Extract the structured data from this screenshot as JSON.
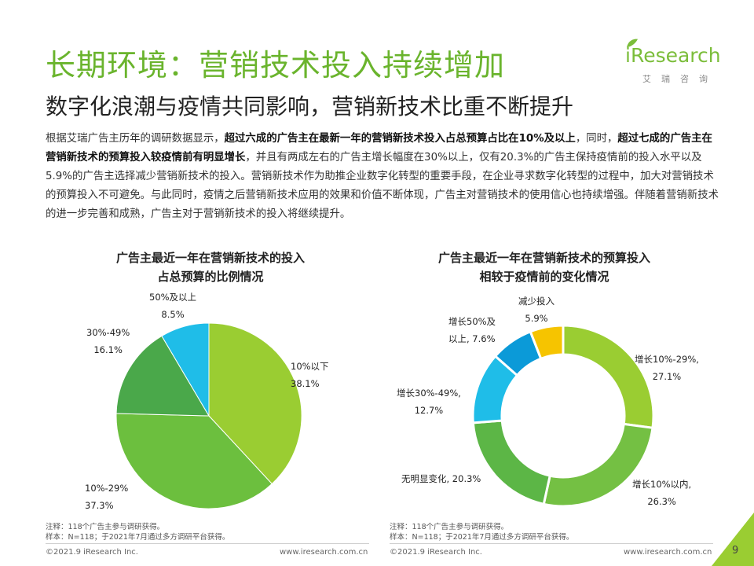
{
  "header": {
    "title": "长期环境：营销技术投入持续增加",
    "subtitle": "数字化浪潮与疫情共同影响，营销新技术比重不断提升"
  },
  "logo": {
    "word": "Research",
    "prefix": "i",
    "sub": "艾瑞咨询"
  },
  "body": {
    "p1": "根据艾瑞广告主历年的调研数据显示，",
    "b1": "超过六成的广告主在最新一年的营销新技术投入占总预算占比在10%及以上",
    "p2": "，同时，",
    "b2": "超过七成的广告主在营销新技术的预算投入较疫情前有明显增长",
    "p3": "，并且有两成左右的广告主增长幅度在30%以上，仅有20.3%的广告主保持疫情前的投入水平以及5.9%的广告主选择减少营销新技术的投入。营销新技术作为助推企业数字化转型的重要手段，在企业寻求数字化转型的过程中，加大对营销技术的预算投入不可避免。与此同时，疫情之后营销新技术应用的效果和价值不断体现，广告主对营销技术的使用信心也持续增强。伴随着营销新技术的进一步完善和成熟，广告主对于营销新技术的投入将继续提升。"
  },
  "chart_data": [
    {
      "type": "pie",
      "title": "广告主最近一年在营销新技术的投入\n占总预算的比例情况",
      "title_line1": "广告主最近一年在营销新技术的投入",
      "title_line2": "占总预算的比例情况",
      "categories": [
        "10%以下",
        "10%-29%",
        "30%-49%",
        "50%及以上"
      ],
      "values": [
        38.1,
        37.3,
        16.1,
        8.5
      ],
      "value_labels": [
        "38.1%",
        "37.3%",
        "16.1%",
        "8.5%"
      ],
      "colors": [
        "#9acd32",
        "#6cbf3e",
        "#4aa84a",
        "#1fbde8"
      ],
      "note1": "注释：118个广告主参与调研获得。",
      "note2": "样本：N=118；于2021年7月通过多方调研平台获得。"
    },
    {
      "type": "donut",
      "title_line1": "广告主最近一年在营销新技术的预算投入",
      "title_line2": "相较于疫情前的变化情况",
      "categories": [
        "增长10%-29%",
        "增长10%以内",
        "无明显变化",
        "增长30%-49%",
        "增长50%及以上",
        "减少投入"
      ],
      "values": [
        27.1,
        26.3,
        20.3,
        12.7,
        7.6,
        5.9
      ],
      "labels": {
        "a1": "增长10%-29%,",
        "a2": "27.1%",
        "b1": "增长10%以内,",
        "b2": "26.3%",
        "c1": "无明显变化, 20.3%",
        "d1": "增长30%-49%,",
        "d2": "12.7%",
        "e1": "增长50%及",
        "e2": "以上, 7.6%",
        "f1": "减少投入",
        "f2": "5.9%"
      },
      "colors": [
        "#9acd32",
        "#74c043",
        "#5cb646",
        "#1fbde8",
        "#0b9ad8",
        "#f6c400"
      ],
      "note1": "注释：118个广告主参与调研获得。",
      "note2": "样本：N=118；于2021年7月通过多方调研平台获得。"
    }
  ],
  "footer": {
    "left_copy": "©2021.9 iResearch Inc.",
    "left_url": "www.iresearch.com.cn",
    "right_copy": "©2021.9 iResearch Inc.",
    "right_url": "www.iresearch.com.cn",
    "page": "9"
  }
}
